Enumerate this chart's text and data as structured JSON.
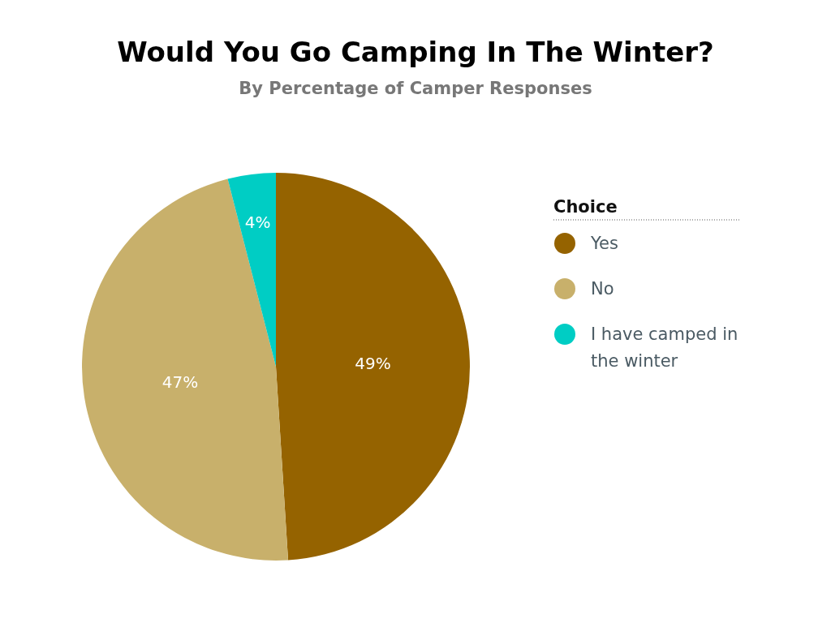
{
  "chart_data": {
    "type": "pie",
    "title": "Would You Go Camping In The Winter?",
    "subtitle": "By Percentage of Camper Responses",
    "legend_title": "Choice",
    "legend": "right",
    "categories": [
      "Yes",
      "No",
      "I have camped in the winter"
    ],
    "values": [
      49,
      47,
      4
    ],
    "colors": [
      "#956300",
      "#c8b06b",
      "#00cdc4"
    ],
    "value_labels": [
      "49%",
      "47%",
      "4%"
    ]
  }
}
